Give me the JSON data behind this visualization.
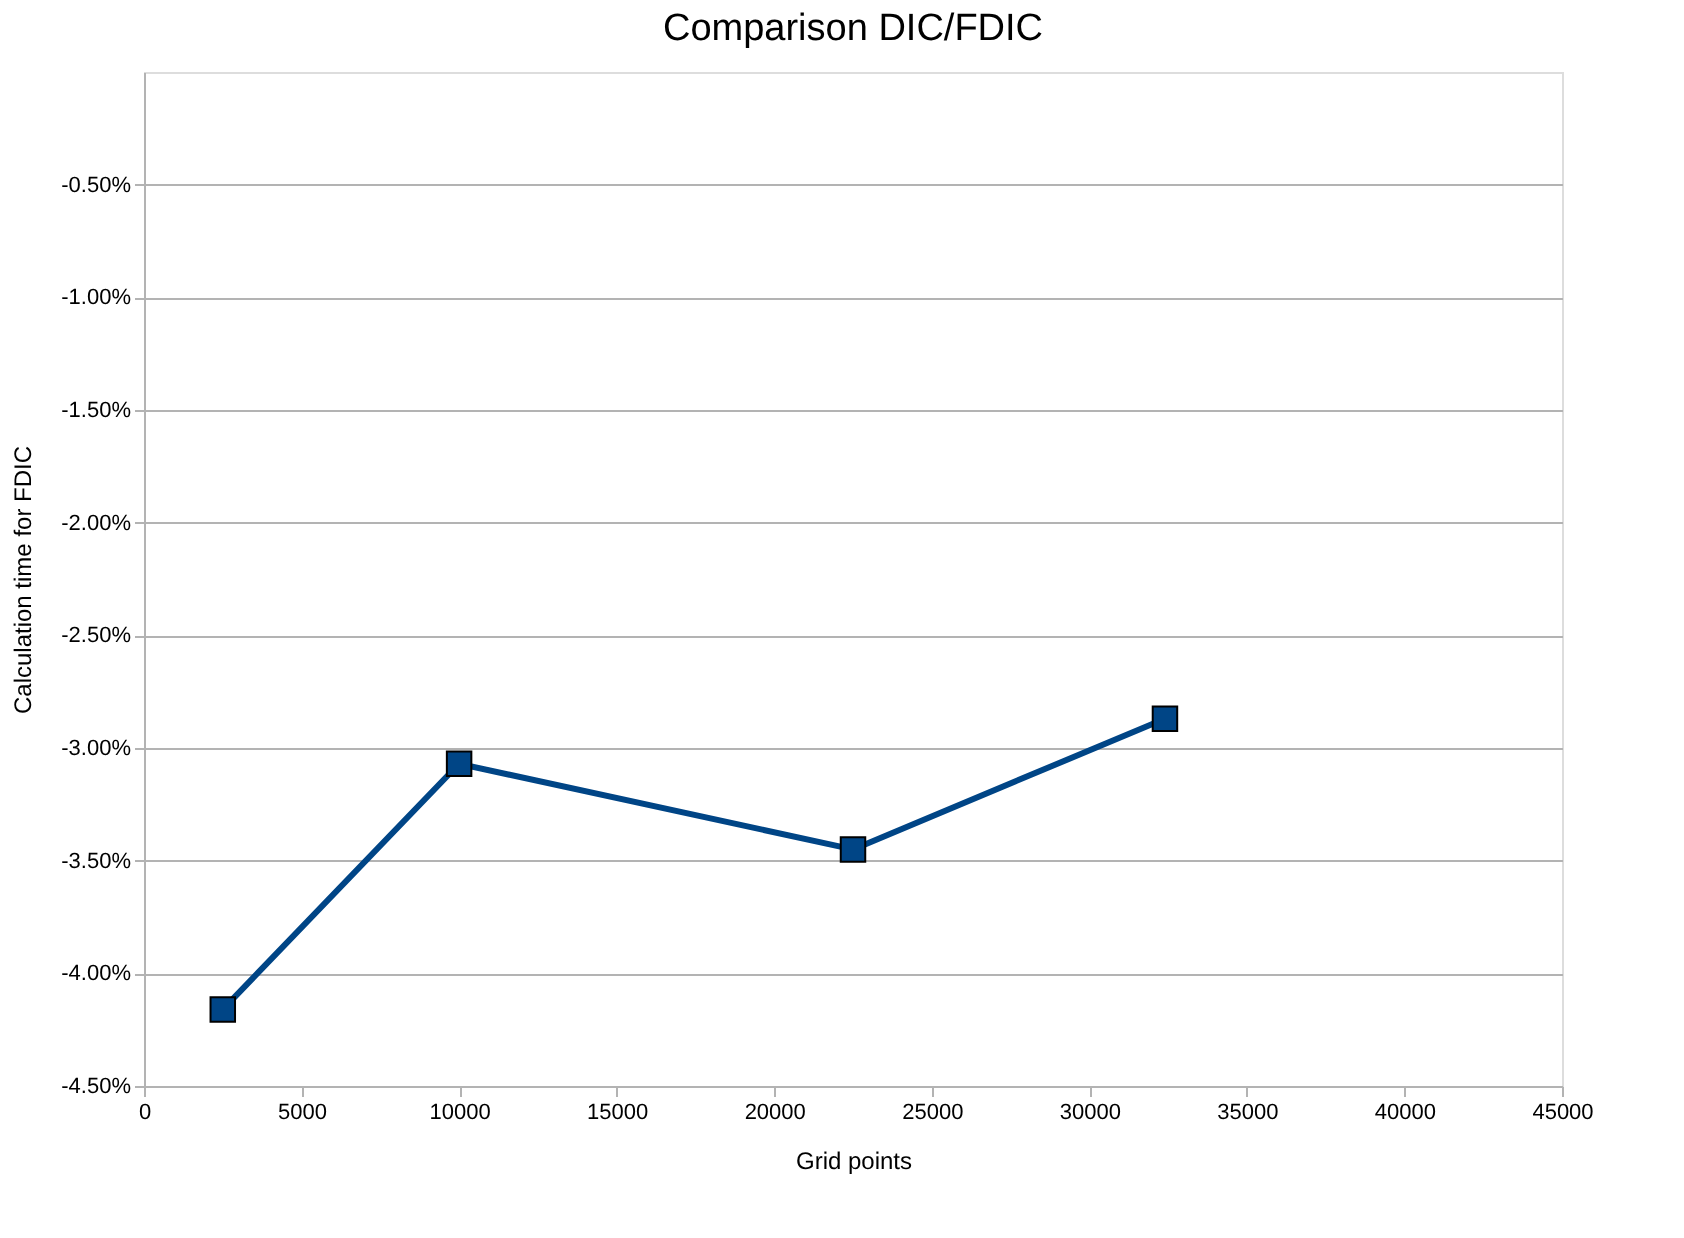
{
  "chart_data": {
    "type": "line",
    "title": "Comparison DIC/FDIC",
    "xlabel": "Grid points",
    "ylabel": "Calculation time for FDIC",
    "x": [
      2500,
      10000,
      22500,
      32400
    ],
    "series": [
      {
        "color": "#004586",
        "values": [
          -4.16,
          -3.07,
          -3.45,
          -2.87
        ]
      }
    ],
    "xlim": [
      0,
      45000
    ],
    "xticks": [
      0,
      5000,
      10000,
      15000,
      20000,
      25000,
      30000,
      35000,
      40000,
      45000
    ],
    "ylim": [
      -4.5,
      0
    ],
    "yticks": [
      {
        "value": -4.5,
        "label": "-4.50%"
      },
      {
        "value": -4.0,
        "label": "-4.00%"
      },
      {
        "value": -3.5,
        "label": "-3.50%"
      },
      {
        "value": -3.0,
        "label": "-3.00%"
      },
      {
        "value": -2.5,
        "label": "-2.50%"
      },
      {
        "value": -2.0,
        "label": "-2.00%"
      },
      {
        "value": -1.5,
        "label": "-1.50%"
      },
      {
        "value": -1.0,
        "label": "-1.00%"
      },
      {
        "value": -0.5,
        "label": "-0.50%"
      }
    ],
    "grid": "y",
    "marker": "square",
    "line_style": "solid"
  }
}
